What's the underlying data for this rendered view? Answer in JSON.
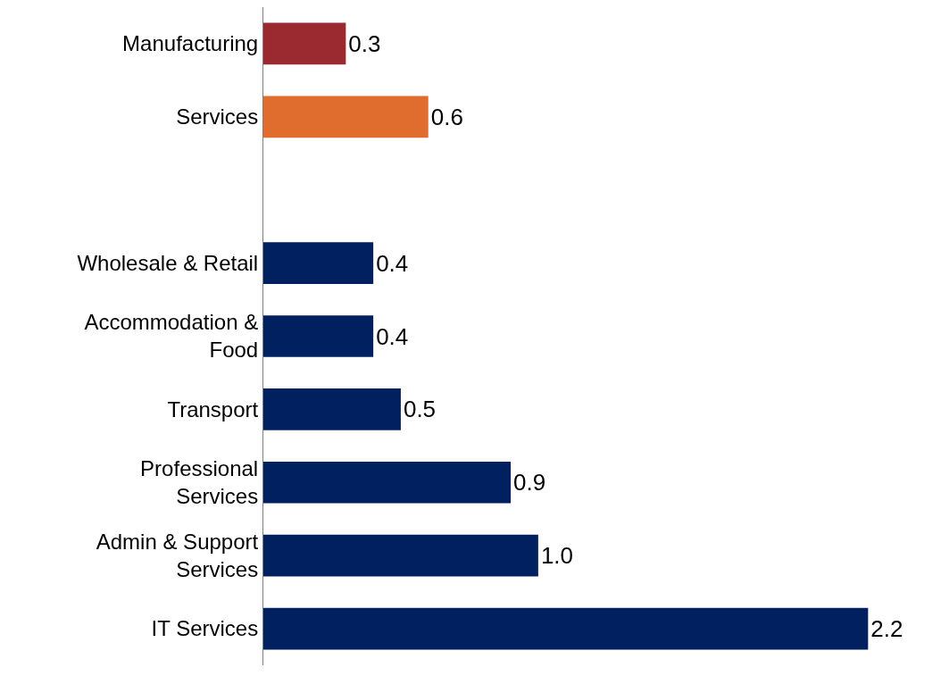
{
  "chart_data": {
    "type": "bar",
    "orientation": "horizontal",
    "categories": [
      "Manufacturing",
      "Services",
      null,
      "Wholesale & Retail",
      "Accommodation & Food",
      "Transport",
      "Professional Services",
      "Admin & Support Services",
      "IT Services"
    ],
    "values": [
      0.3,
      0.6,
      null,
      0.4,
      0.4,
      0.5,
      0.9,
      1.0,
      2.2
    ],
    "value_labels": [
      "0.3",
      "0.6",
      null,
      "0.4",
      "0.4",
      "0.5",
      "0.9",
      "1.0",
      "2.2"
    ],
    "colors": [
      "#9b2a30",
      "#e06c2e",
      null,
      "#002060",
      "#002060",
      "#002060",
      "#002060",
      "#002060",
      "#002060"
    ]
  }
}
